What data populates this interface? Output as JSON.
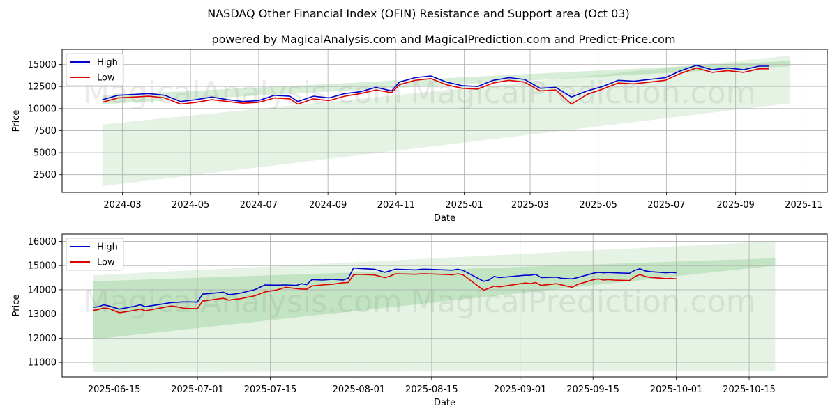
{
  "chart_data": {
    "type": "line",
    "title": "NASDAQ Other Financial Index (OFIN) Resistance and Support area (Oct 03)",
    "subtitle": "powered by MagicalAnalysis.com and MagicalPrediction.com and Predict-Price.com",
    "watermarks": [
      "MagicalAnalysis.com",
      "MagicalPrediction.com"
    ],
    "colors": {
      "high": "#0000cc",
      "low": "#e00000",
      "band": "#2ca02c",
      "grid": "#b0b0b0"
    },
    "panels": [
      {
        "name": "full-range",
        "xlabel": "Date",
        "ylabel": "Price",
        "xlim": [
          "2024-01-07",
          "2025-11-22"
        ],
        "ylim": [
          500,
          16700
        ],
        "x_ticks": [
          "2024-03",
          "2024-05",
          "2024-07",
          "2024-09",
          "2024-11",
          "2025-01",
          "2025-03",
          "2025-05",
          "2025-07",
          "2025-09",
          "2025-11"
        ],
        "y_ticks": [
          "2500",
          "5000",
          "7500",
          "10000",
          "12500",
          "15000"
        ],
        "legend": [
          "High",
          "Low"
        ],
        "legend_position": "top-left",
        "bands": [
          {
            "start": "2024-02-12",
            "end": "2025-10-20",
            "upper_start": 8200,
            "upper_end": 16000,
            "lower_start": 1200,
            "lower_end": 10600,
            "opacity": 0.12
          },
          {
            "start": "2024-02-12",
            "end": "2025-10-20",
            "upper_start": 11500,
            "upper_end": 15400,
            "lower_start": 10500,
            "lower_end": 14800,
            "opacity": 0.18
          }
        ],
        "series": [
          {
            "name": "High",
            "dates": [
              "2024-02-12",
              "2024-02-26",
              "2024-03-11",
              "2024-03-25",
              "2024-04-08",
              "2024-04-22",
              "2024-05-06",
              "2024-05-20",
              "2024-06-03",
              "2024-06-17",
              "2024-07-01",
              "2024-07-15",
              "2024-07-29",
              "2024-08-05",
              "2024-08-19",
              "2024-09-02",
              "2024-09-16",
              "2024-09-30",
              "2024-10-14",
              "2024-10-28",
              "2024-11-04",
              "2024-11-18",
              "2024-12-02",
              "2024-12-16",
              "2024-12-30",
              "2025-01-13",
              "2025-01-27",
              "2025-02-10",
              "2025-02-24",
              "2025-03-10",
              "2025-03-24",
              "2025-04-07",
              "2025-04-21",
              "2025-05-05",
              "2025-05-19",
              "2025-06-02",
              "2025-06-16",
              "2025-06-30",
              "2025-07-14",
              "2025-07-28",
              "2025-08-11",
              "2025-08-25",
              "2025-09-08",
              "2025-09-22",
              "2025-10-01"
            ],
            "values": [
              11000,
              11500,
              11600,
              11700,
              11500,
              10800,
              11000,
              11300,
              11000,
              10800,
              10900,
              11500,
              11400,
              10800,
              11400,
              11200,
              11700,
              11900,
              12400,
              12000,
              13000,
              13500,
              13700,
              13000,
              12600,
              12500,
              13200,
              13500,
              13300,
              12300,
              12400,
              11300,
              12000,
              12500,
              13200,
              13100,
              13300,
              13500,
              14300,
              14900,
              14400,
              14600,
              14400,
              14800,
              14800
            ]
          },
          {
            "name": "Low",
            "dates": [
              "2024-02-12",
              "2024-02-26",
              "2024-03-11",
              "2024-03-25",
              "2024-04-08",
              "2024-04-22",
              "2024-05-06",
              "2024-05-20",
              "2024-06-03",
              "2024-06-17",
              "2024-07-01",
              "2024-07-15",
              "2024-07-29",
              "2024-08-05",
              "2024-08-19",
              "2024-09-02",
              "2024-09-16",
              "2024-09-30",
              "2024-10-14",
              "2024-10-28",
              "2024-11-04",
              "2024-11-18",
              "2024-12-02",
              "2024-12-16",
              "2024-12-30",
              "2025-01-13",
              "2025-01-27",
              "2025-02-10",
              "2025-02-24",
              "2025-03-10",
              "2025-03-24",
              "2025-04-07",
              "2025-04-21",
              "2025-05-05",
              "2025-05-19",
              "2025-06-02",
              "2025-06-16",
              "2025-06-30",
              "2025-07-14",
              "2025-07-28",
              "2025-08-11",
              "2025-08-25",
              "2025-09-08",
              "2025-09-22",
              "2025-10-01"
            ],
            "values": [
              10700,
              11200,
              11300,
              11400,
              11200,
              10500,
              10700,
              11000,
              10800,
              10600,
              10700,
              11200,
              11100,
              10500,
              11100,
              10900,
              11400,
              11700,
              12100,
              11800,
              12700,
              13200,
              13400,
              12700,
              12300,
              12200,
              12900,
              13200,
              13000,
              12000,
              12100,
              10500,
              11600,
              12200,
              12900,
              12800,
              13000,
              13200,
              14000,
              14600,
              14100,
              14300,
              14100,
              14500,
              14500
            ]
          }
        ]
      },
      {
        "name": "recent",
        "xlabel": "Date",
        "ylabel": "Price",
        "xlim": [
          "2025-06-05",
          "2025-10-30"
        ],
        "ylim": [
          10400,
          16300
        ],
        "x_ticks": [
          "2025-06-15",
          "2025-07-01",
          "2025-07-15",
          "2025-08-01",
          "2025-08-15",
          "2025-09-01",
          "2025-09-15",
          "2025-10-01",
          "2025-10-15"
        ],
        "y_ticks": [
          "11000",
          "12000",
          "13000",
          "14000",
          "15000",
          "16000"
        ],
        "legend": [
          "High",
          "Low"
        ],
        "legend_position": "top-left",
        "bands": [
          {
            "start": "2025-06-11",
            "end": "2025-10-20",
            "upper_start": 14600,
            "upper_end": 16000,
            "lower_start": 10600,
            "lower_end": 10650,
            "opacity": 0.12
          },
          {
            "start": "2025-06-11",
            "end": "2025-10-20",
            "upper_start": 14350,
            "upper_end": 15300,
            "lower_start": 11950,
            "lower_end": 15000,
            "opacity": 0.18
          }
        ],
        "series": [
          {
            "name": "High",
            "dates": [
              "2025-06-11",
              "2025-06-12",
              "2025-06-13",
              "2025-06-14",
              "2025-06-16",
              "2025-06-19",
              "2025-06-20",
              "2025-06-21",
              "2025-06-26",
              "2025-06-27",
              "2025-06-28",
              "2025-06-29",
              "2025-07-01",
              "2025-07-02",
              "2025-07-06",
              "2025-07-07",
              "2025-07-08",
              "2025-07-09",
              "2025-07-12",
              "2025-07-13",
              "2025-07-14",
              "2025-07-16",
              "2025-07-18",
              "2025-07-20",
              "2025-07-21",
              "2025-07-22",
              "2025-07-23",
              "2025-07-25",
              "2025-07-27",
              "2025-07-29",
              "2025-07-30",
              "2025-07-31",
              "2025-08-01",
              "2025-08-04",
              "2025-08-06",
              "2025-08-07",
              "2025-08-08",
              "2025-08-12",
              "2025-08-13",
              "2025-08-14",
              "2025-08-19",
              "2025-08-20",
              "2025-08-21",
              "2025-08-25",
              "2025-08-26",
              "2025-08-27",
              "2025-08-28",
              "2025-09-02",
              "2025-09-03",
              "2025-09-04",
              "2025-09-05",
              "2025-09-08",
              "2025-09-09",
              "2025-09-10",
              "2025-09-11",
              "2025-09-12",
              "2025-09-15",
              "2025-09-16",
              "2025-09-17",
              "2025-09-18",
              "2025-09-19",
              "2025-09-22",
              "2025-09-23",
              "2025-09-24",
              "2025-09-25",
              "2025-09-26",
              "2025-09-29",
              "2025-09-30",
              "2025-10-01"
            ],
            "values": [
              13280,
              13300,
              13380,
              13330,
              13200,
              13320,
              13380,
              13300,
              13470,
              13480,
              13500,
              13500,
              13490,
              13820,
              13900,
              13800,
              13820,
              13850,
              14000,
              14100,
              14200,
              14190,
              14200,
              14180,
              14250,
              14210,
              14420,
              14400,
              14430,
              14400,
              14480,
              14900,
              14880,
              14850,
              14720,
              14780,
              14850,
              14820,
              14850,
              14850,
              14810,
              14850,
              14800,
              14350,
              14400,
              14550,
              14500,
              14600,
              14600,
              14640,
              14500,
              14520,
              14470,
              14460,
              14450,
              14500,
              14680,
              14720,
              14700,
              14710,
              14700,
              14680,
              14800,
              14870,
              14780,
              14750,
              14700,
              14720,
              14700
            ]
          },
          {
            "name": "Low",
            "dates": [
              "2025-06-11",
              "2025-06-12",
              "2025-06-13",
              "2025-06-14",
              "2025-06-16",
              "2025-06-19",
              "2025-06-20",
              "2025-06-21",
              "2025-06-26",
              "2025-06-27",
              "2025-06-28",
              "2025-06-29",
              "2025-07-01",
              "2025-07-02",
              "2025-07-06",
              "2025-07-07",
              "2025-07-08",
              "2025-07-09",
              "2025-07-12",
              "2025-07-13",
              "2025-07-14",
              "2025-07-16",
              "2025-07-18",
              "2025-07-20",
              "2025-07-21",
              "2025-07-22",
              "2025-07-23",
              "2025-07-25",
              "2025-07-27",
              "2025-07-29",
              "2025-07-30",
              "2025-07-31",
              "2025-08-01",
              "2025-08-04",
              "2025-08-06",
              "2025-08-07",
              "2025-08-08",
              "2025-08-12",
              "2025-08-13",
              "2025-08-14",
              "2025-08-19",
              "2025-08-20",
              "2025-08-21",
              "2025-08-25",
              "2025-08-26",
              "2025-08-27",
              "2025-08-28",
              "2025-09-02",
              "2025-09-03",
              "2025-09-04",
              "2025-09-05",
              "2025-09-08",
              "2025-09-09",
              "2025-09-10",
              "2025-09-11",
              "2025-09-12",
              "2025-09-15",
              "2025-09-16",
              "2025-09-17",
              "2025-09-18",
              "2025-09-19",
              "2025-09-22",
              "2025-09-23",
              "2025-09-24",
              "2025-09-25",
              "2025-09-26",
              "2025-09-29",
              "2025-09-30",
              "2025-10-01"
            ],
            "values": [
              13150,
              13180,
              13250,
              13220,
              13050,
              13150,
              13200,
              13130,
              13330,
              13300,
              13250,
              13230,
              13220,
              13530,
              13650,
              13570,
              13600,
              13620,
              13750,
              13830,
              13910,
              13980,
              14100,
              14050,
              14030,
              14020,
              14160,
              14200,
              14230,
              14290,
              14300,
              14620,
              14640,
              14610,
              14500,
              14560,
              14660,
              14640,
              14660,
              14660,
              14620,
              14660,
              14620,
              13980,
              14060,
              14150,
              14120,
              14280,
              14250,
              14300,
              14180,
              14250,
              14200,
              14150,
              14100,
              14220,
              14410,
              14450,
              14400,
              14420,
              14400,
              14380,
              14540,
              14630,
              14550,
              14510,
              14460,
              14470,
              14450
            ]
          }
        ]
      }
    ]
  }
}
